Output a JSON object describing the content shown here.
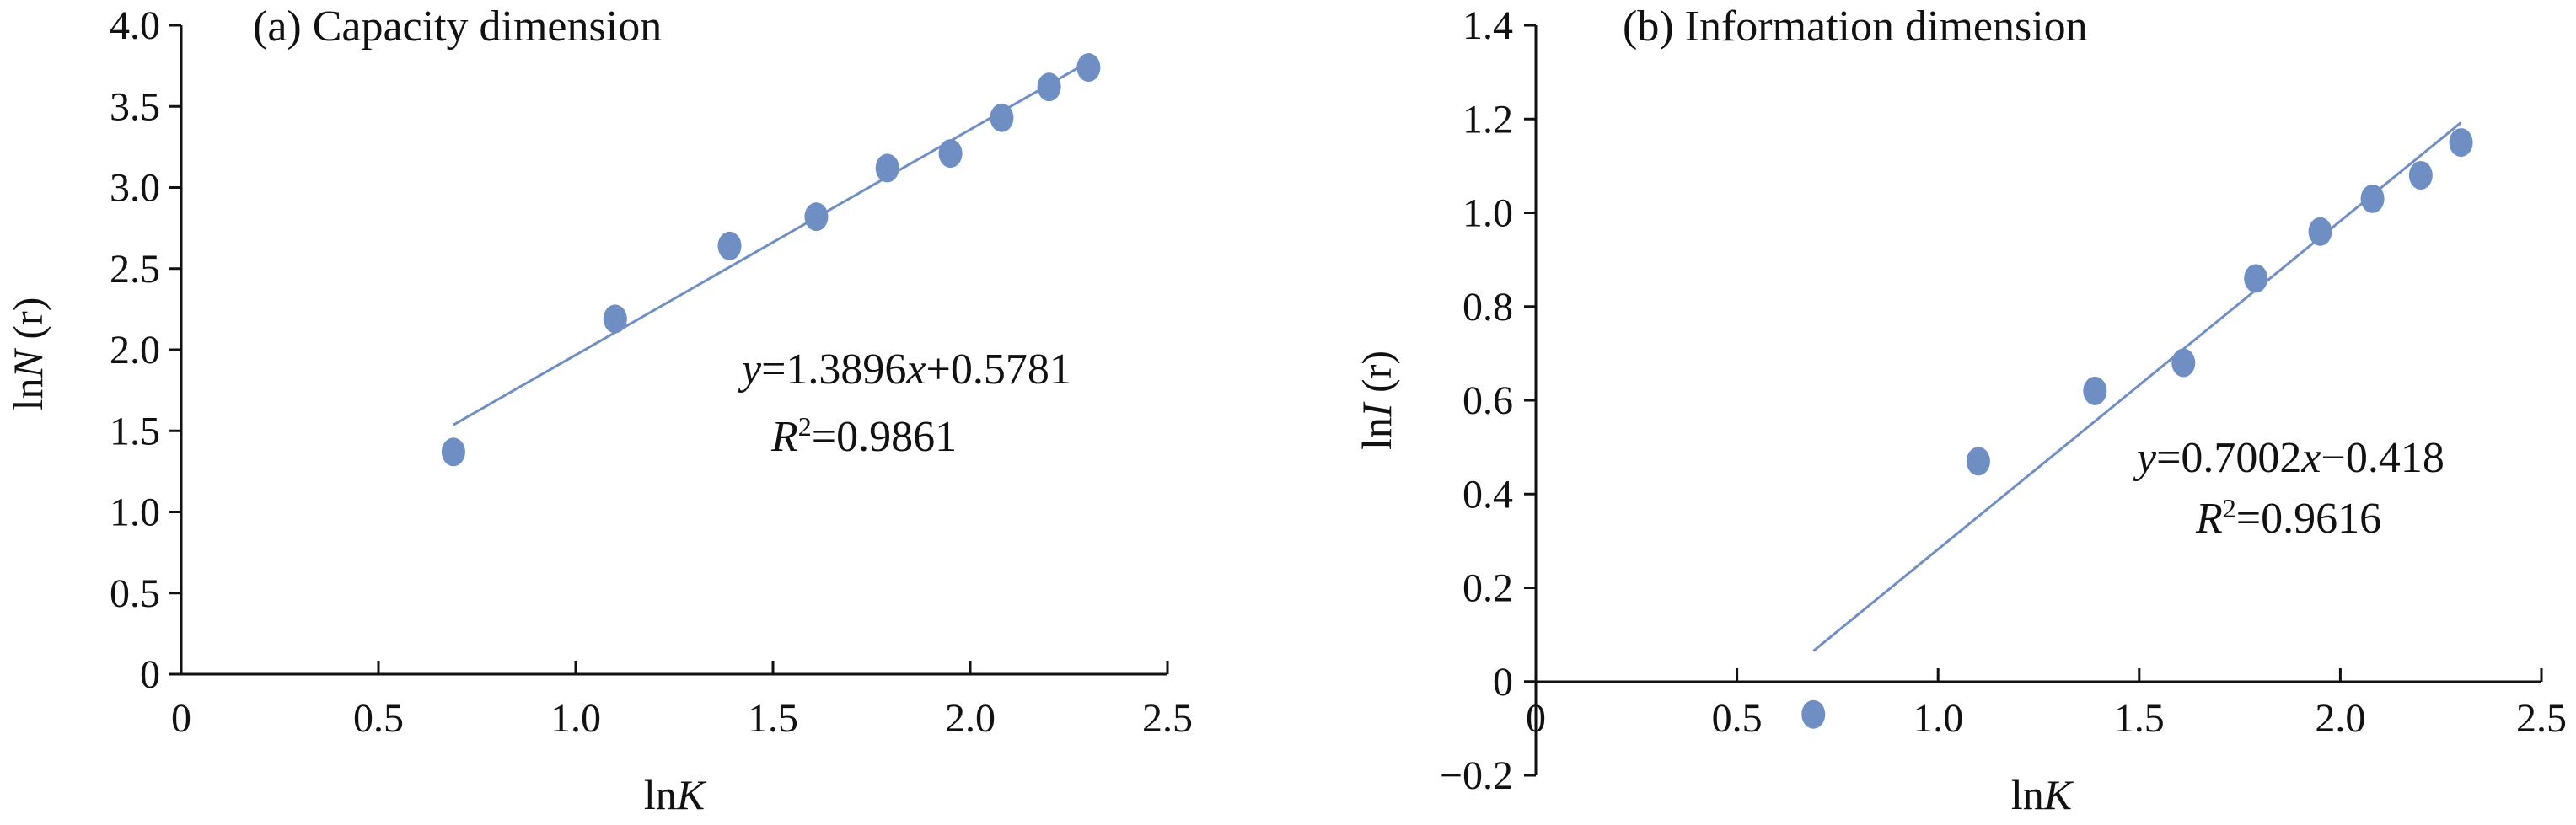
{
  "colors": {
    "marker": "#6f8fc4",
    "fit_line": "#6f8fc4",
    "axis": "#111111"
  },
  "chart_data": [
    {
      "type": "scatter",
      "title": "(a) Capacity dimension",
      "xlabel": "lnK",
      "ylabel": "lnN (r)",
      "xlim": [
        0,
        2.5
      ],
      "ylim": [
        0,
        4.0
      ],
      "xticks": [
        0,
        0.5,
        1.0,
        1.5,
        2.0,
        2.5
      ],
      "xtick_labels": [
        "0",
        "0.5",
        "1.0",
        "1.5",
        "2.0",
        "2.5"
      ],
      "yticks": [
        0,
        0.5,
        1.0,
        1.5,
        2.0,
        2.5,
        3.0,
        3.5,
        4.0
      ],
      "ytick_labels": [
        "0",
        "0.5",
        "1.0",
        "1.5",
        "2.0",
        "2.5",
        "3.0",
        "3.5",
        "4.0"
      ],
      "grid": false,
      "points": {
        "x": [
          0.69,
          1.1,
          1.39,
          1.61,
          1.79,
          1.95,
          2.08,
          2.2,
          2.3
        ],
        "y": [
          1.37,
          2.19,
          2.64,
          2.82,
          3.12,
          3.21,
          3.43,
          3.62,
          3.74
        ]
      },
      "fit": {
        "slope": 1.3896,
        "intercept": 0.5781,
        "x_range": [
          0.69,
          2.3
        ],
        "equation": "y=1.3896x+0.5781",
        "r2": "R2=0.9861"
      }
    },
    {
      "type": "scatter",
      "title": "(b) Information dimension",
      "xlabel": "lnK",
      "ylabel": "lnI (r)",
      "xlim": [
        0,
        2.5
      ],
      "ylim": [
        -0.2,
        1.4
      ],
      "xticks": [
        0,
        0.5,
        1.0,
        1.5,
        2.0,
        2.5
      ],
      "xtick_labels": [
        "0",
        "0.5",
        "1.0",
        "1.5",
        "2.0",
        "2.5"
      ],
      "yticks": [
        -0.2,
        0,
        0.2,
        0.4,
        0.6,
        0.8,
        1.0,
        1.2,
        1.4
      ],
      "ytick_labels": [
        "−0.2",
        "0",
        "0.2",
        "0.4",
        "0.6",
        "0.8",
        "1.0",
        "1.2",
        "1.4"
      ],
      "grid": false,
      "points": {
        "x": [
          0.69,
          1.1,
          1.39,
          1.61,
          1.79,
          1.95,
          2.08,
          2.2,
          2.3
        ],
        "y": [
          -0.07,
          0.47,
          0.62,
          0.68,
          0.86,
          0.96,
          1.03,
          1.08,
          1.15
        ]
      },
      "fit": {
        "slope": 0.7002,
        "intercept": -0.418,
        "x_range": [
          0.69,
          2.3
        ],
        "equation": "y=0.7002x−0.418",
        "r2": "R2=0.9616"
      }
    }
  ]
}
